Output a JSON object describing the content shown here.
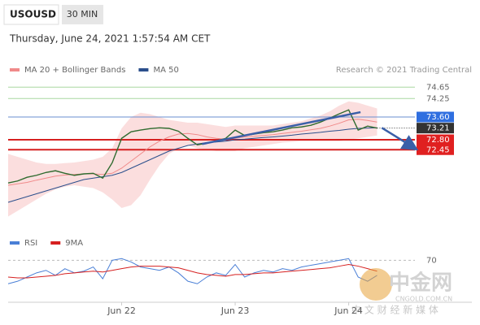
{
  "chart_data": {
    "type": "line",
    "symbol": "USOUSD",
    "timeframe": "30 MIN",
    "datetime": "Thursday, June 24, 2021 1:57:54 AM CET",
    "source": "Research © 2021 Trading Central",
    "xlim": [
      0,
      172
    ],
    "xticks": [
      {
        "value": 48,
        "label": "Jun 22"
      },
      {
        "value": 96,
        "label": "Jun 23"
      },
      {
        "value": 144,
        "label": "Jun 24"
      }
    ],
    "ylim": [
      69.6,
      75.0
    ],
    "yticks": [
      74.65,
      74.25,
      {
        "value": 73.6,
        "label": "73.60"
      },
      73.21,
      {
        "value": 72.8,
        "label": "72.80"
      },
      72.45
    ],
    "ytick_styles": [
      {
        "line": "#a8d8a0",
        "box": null,
        "text": "#666"
      },
      {
        "line": "#a8d8a0",
        "box": null,
        "text": "#666"
      },
      {
        "line": "#6a8fd0",
        "box": "#2f6fe0",
        "text": "#fff"
      },
      {
        "line": null,
        "box": "#333333",
        "text": "#fff"
      },
      {
        "line": "#d62020",
        "box": "#e02020",
        "text": "#fff"
      },
      {
        "line": "#d62020",
        "box": "#e02020",
        "text": "#fff"
      }
    ],
    "x": [
      0,
      4,
      8,
      12,
      16,
      20,
      24,
      28,
      32,
      36,
      40,
      44,
      48,
      52,
      56,
      60,
      64,
      68,
      72,
      76,
      80,
      84,
      88,
      92,
      96,
      100,
      104,
      108,
      112,
      116,
      120,
      124,
      128,
      132,
      136,
      140,
      144,
      148,
      152,
      156
    ],
    "price": {
      "color": "#2f6b2f",
      "values": [
        71.28,
        71.35,
        71.48,
        71.55,
        71.65,
        71.71,
        71.62,
        71.55,
        71.6,
        71.62,
        71.45,
        71.99,
        72.85,
        73.08,
        73.14,
        73.19,
        73.22,
        73.2,
        73.1,
        72.85,
        72.62,
        72.68,
        72.76,
        72.85,
        73.14,
        72.95,
        73.0,
        73.05,
        73.08,
        73.14,
        73.22,
        73.25,
        73.31,
        73.42,
        73.56,
        73.71,
        73.85,
        73.14,
        73.28,
        73.21
      ]
    },
    "series": [
      {
        "name": "MA 20 + Bollinger Bands",
        "color": "#f08a8a",
        "values": [
          71.2,
          71.25,
          71.3,
          71.38,
          71.45,
          71.52,
          71.56,
          71.58,
          71.6,
          71.6,
          71.58,
          71.62,
          71.8,
          72.05,
          72.3,
          72.55,
          72.75,
          72.9,
          73.0,
          73.02,
          72.98,
          72.9,
          72.85,
          72.82,
          72.85,
          72.9,
          72.92,
          72.95,
          72.98,
          73.02,
          73.06,
          73.1,
          73.15,
          73.2,
          73.28,
          73.38,
          73.5,
          73.52,
          73.48,
          73.42
        ],
        "upper": [
          72.3,
          72.2,
          72.1,
          72.0,
          71.95,
          71.95,
          71.98,
          72.0,
          72.05,
          72.1,
          72.2,
          72.5,
          73.2,
          73.6,
          73.75,
          73.7,
          73.6,
          73.5,
          73.45,
          73.4,
          73.4,
          73.35,
          73.3,
          73.25,
          73.3,
          73.3,
          73.3,
          73.3,
          73.3,
          73.35,
          73.4,
          73.45,
          73.55,
          73.65,
          73.8,
          74.0,
          74.15,
          74.1,
          74.0,
          73.9
        ],
        "lower": [
          70.1,
          70.3,
          70.5,
          70.7,
          70.9,
          71.05,
          71.15,
          71.2,
          71.15,
          71.1,
          70.95,
          70.7,
          70.4,
          70.5,
          70.85,
          71.4,
          71.9,
          72.3,
          72.5,
          72.6,
          72.5,
          72.45,
          72.4,
          72.4,
          72.4,
          72.5,
          72.55,
          72.6,
          72.65,
          72.7,
          72.72,
          72.75,
          72.75,
          72.75,
          72.75,
          72.75,
          72.8,
          72.85,
          72.9,
          72.95
        ]
      },
      {
        "name": "MA 50",
        "color": "#2b4f8c",
        "values": [
          70.6,
          70.7,
          70.8,
          70.9,
          71.0,
          71.1,
          71.2,
          71.3,
          71.4,
          71.45,
          71.5,
          71.55,
          71.65,
          71.8,
          71.95,
          72.1,
          72.25,
          72.4,
          72.5,
          72.6,
          72.65,
          72.7,
          72.72,
          72.75,
          72.8,
          72.82,
          72.85,
          72.88,
          72.9,
          72.93,
          72.96,
          73.0,
          73.03,
          73.06,
          73.1,
          73.13,
          73.17,
          73.2,
          73.21,
          73.22
        ]
      }
    ],
    "trendlines": [
      {
        "color": "#3a5fa8",
        "arrow": false,
        "points": [
          [
            82,
            72.65
          ],
          [
            149,
            73.77
          ]
        ]
      },
      {
        "color": "#3a5fa8",
        "arrow": true,
        "points": [
          [
            158,
            73.22
          ],
          [
            172,
            72.5
          ]
        ]
      }
    ],
    "rsi_panel": {
      "ylim": [
        20,
        80
      ],
      "yticks": [
        70
      ],
      "series": [
        {
          "name": "RSI",
          "color": "#4a7fd6",
          "values": [
            42,
            45,
            50,
            55,
            58,
            52,
            60,
            55,
            57,
            62,
            48,
            70,
            72,
            68,
            62,
            60,
            58,
            62,
            55,
            45,
            42,
            50,
            55,
            52,
            65,
            50,
            55,
            58,
            56,
            60,
            58,
            62,
            64,
            66,
            68,
            70,
            72,
            50,
            45,
            52
          ]
        },
        {
          "name": "9MA",
          "color": "#d62020",
          "values": [
            50,
            49,
            49,
            50,
            51,
            52,
            54,
            55,
            56,
            57,
            56,
            58,
            60,
            62,
            63,
            63,
            63,
            62,
            61,
            58,
            55,
            53,
            52,
            51,
            53,
            53,
            54,
            55,
            55,
            56,
            57,
            58,
            59,
            60,
            61,
            63,
            65,
            63,
            60,
            57
          ]
        }
      ]
    },
    "watermark": {
      "name": "中金网",
      "url": "CNGOLD.COM.CN",
      "slogan": "中 文 财 经 新 媒 体"
    }
  }
}
